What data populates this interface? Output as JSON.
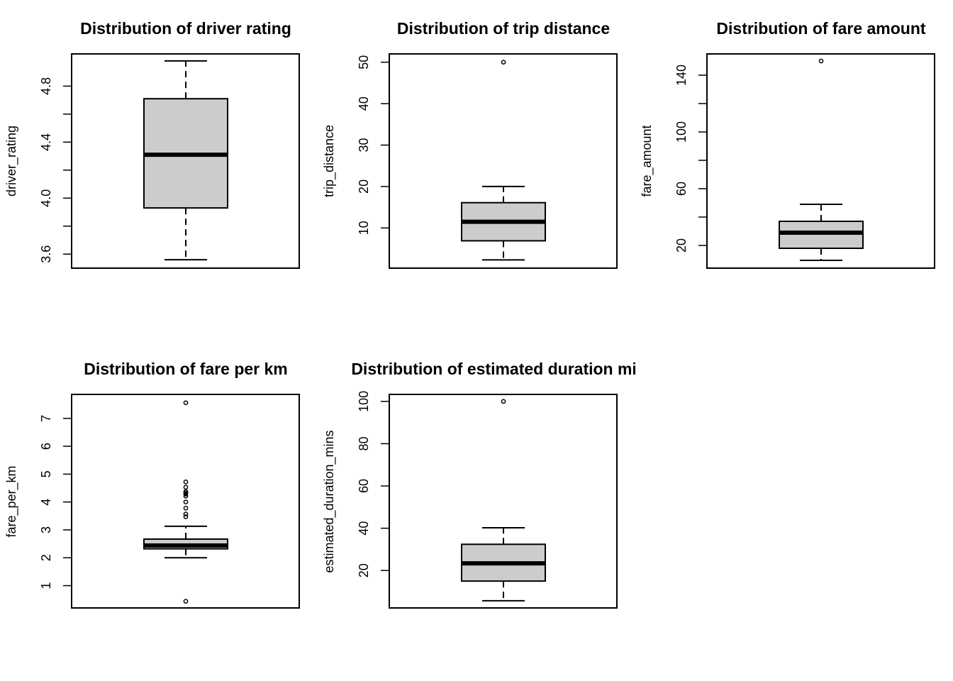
{
  "chart_data": [
    {
      "type": "boxplot",
      "title": "Distribution of driver rating",
      "ylabel": "driver_rating",
      "ylim": [
        3.5,
        5.03
      ],
      "yticks": [
        3.6,
        3.8,
        4.0,
        4.2,
        4.4,
        4.6,
        4.8
      ],
      "ytick_labels": [
        "3.6",
        "",
        "4.0",
        "",
        "4.4",
        "",
        "4.8"
      ],
      "whisker_low": 3.56,
      "q1": 3.93,
      "median": 4.31,
      "q3": 4.71,
      "whisker_high": 4.98,
      "outliers": []
    },
    {
      "type": "boxplot",
      "title": "Distribution of trip distance",
      "ylabel": "trip_distance",
      "ylim": [
        0.3,
        52
      ],
      "yticks": [
        10,
        20,
        30,
        40,
        50
      ],
      "ytick_labels": [
        "10",
        "20",
        "30",
        "40",
        "50"
      ],
      "whisker_low": 2.3,
      "q1": 6.9,
      "median": 11.5,
      "q3": 16.1,
      "whisker_high": 20.0,
      "outliers": [
        50.0
      ]
    },
    {
      "type": "boxplot",
      "title": "Distribution of fare amount",
      "ylabel": "fare_amount",
      "ylim": [
        4,
        155
      ],
      "yticks": [
        20,
        40,
        60,
        80,
        100,
        120,
        140
      ],
      "ytick_labels": [
        "20",
        "",
        "60",
        "",
        "100",
        "",
        "140"
      ],
      "whisker_low": 9.5,
      "q1": 18.0,
      "median": 29.0,
      "q3": 37.0,
      "whisker_high": 49.0,
      "outliers": [
        150.0
      ]
    },
    {
      "type": "boxplot",
      "title": "Distribution of fare per km",
      "ylabel": "fare_per_km",
      "ylim": [
        0.2,
        7.86
      ],
      "yticks": [
        1,
        2,
        3,
        4,
        5,
        6,
        7
      ],
      "ytick_labels": [
        "1",
        "2",
        "3",
        "4",
        "5",
        "6",
        "7"
      ],
      "whisker_low": 2.0,
      "q1": 2.32,
      "median": 2.44,
      "q3": 2.67,
      "whisker_high": 3.13,
      "outliers": [
        0.44,
        3.47,
        3.57,
        3.78,
        4.0,
        4.21,
        4.28,
        4.32,
        4.37,
        4.53,
        4.72,
        7.56
      ]
    },
    {
      "type": "boxplot",
      "title": "Distribution of estimated duration mins",
      "ylabel": "estimated_duration_mins",
      "ylim": [
        2.3,
        103.3
      ],
      "yticks": [
        20,
        40,
        60,
        80,
        100
      ],
      "ytick_labels": [
        "20",
        "40",
        "60",
        "80",
        "100"
      ],
      "whisker_low": 5.7,
      "q1": 15.0,
      "median": 23.4,
      "q3": 32.4,
      "whisker_high": 40.2,
      "outliers": [
        100.0
      ]
    }
  ]
}
